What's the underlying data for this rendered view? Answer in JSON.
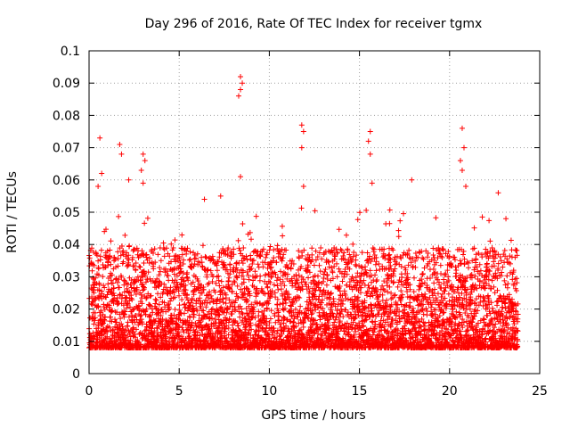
{
  "chart_data": {
    "type": "scatter",
    "title": "Day 296 of 2016, Rate Of TEC Index for receiver tgmx",
    "xlabel": "GPS time / hours",
    "ylabel": "ROTI / TECUs",
    "xlim": [
      0,
      25
    ],
    "ylim": [
      0,
      0.1
    ],
    "x_ticks": [
      0,
      5,
      10,
      15,
      20,
      25
    ],
    "x_tick_labels": [
      "0",
      "5",
      "10",
      "15",
      "20",
      "25"
    ],
    "y_ticks": [
      0,
      0.01,
      0.02,
      0.03,
      0.04,
      0.05,
      0.06,
      0.07,
      0.08,
      0.09,
      0.1
    ],
    "y_tick_labels": [
      "0",
      "0.01",
      "0.02",
      "0.03",
      "0.04",
      "0.05",
      "0.06",
      "0.07",
      "0.08",
      "0.09",
      "0.1"
    ],
    "grid": true,
    "marker": "plus",
    "series": [
      {
        "name": "ROTI",
        "color": "#ff0000",
        "x_range": [
          0,
          23.8
        ],
        "typical_range": [
          0.004,
          0.035
        ],
        "notable_points": [
          {
            "x": 0.6,
            "y": 0.073
          },
          {
            "x": 0.7,
            "y": 0.062
          },
          {
            "x": 0.5,
            "y": 0.058
          },
          {
            "x": 1.7,
            "y": 0.071
          },
          {
            "x": 1.8,
            "y": 0.068
          },
          {
            "x": 2.2,
            "y": 0.06
          },
          {
            "x": 3.0,
            "y": 0.068
          },
          {
            "x": 3.1,
            "y": 0.066
          },
          {
            "x": 2.9,
            "y": 0.063
          },
          {
            "x": 3.0,
            "y": 0.059
          },
          {
            "x": 8.4,
            "y": 0.092
          },
          {
            "x": 8.5,
            "y": 0.09
          },
          {
            "x": 8.4,
            "y": 0.088
          },
          {
            "x": 8.3,
            "y": 0.086
          },
          {
            "x": 8.4,
            "y": 0.061
          },
          {
            "x": 11.8,
            "y": 0.077
          },
          {
            "x": 11.9,
            "y": 0.075
          },
          {
            "x": 11.8,
            "y": 0.07
          },
          {
            "x": 11.9,
            "y": 0.058
          },
          {
            "x": 15.6,
            "y": 0.075
          },
          {
            "x": 15.5,
            "y": 0.072
          },
          {
            "x": 15.6,
            "y": 0.068
          },
          {
            "x": 15.7,
            "y": 0.059
          },
          {
            "x": 17.9,
            "y": 0.06
          },
          {
            "x": 20.7,
            "y": 0.076
          },
          {
            "x": 20.8,
            "y": 0.07
          },
          {
            "x": 20.6,
            "y": 0.066
          },
          {
            "x": 20.7,
            "y": 0.063
          },
          {
            "x": 20.9,
            "y": 0.058
          },
          {
            "x": 22.7,
            "y": 0.056
          },
          {
            "x": 7.3,
            "y": 0.055
          },
          {
            "x": 6.4,
            "y": 0.054
          }
        ]
      }
    ]
  }
}
